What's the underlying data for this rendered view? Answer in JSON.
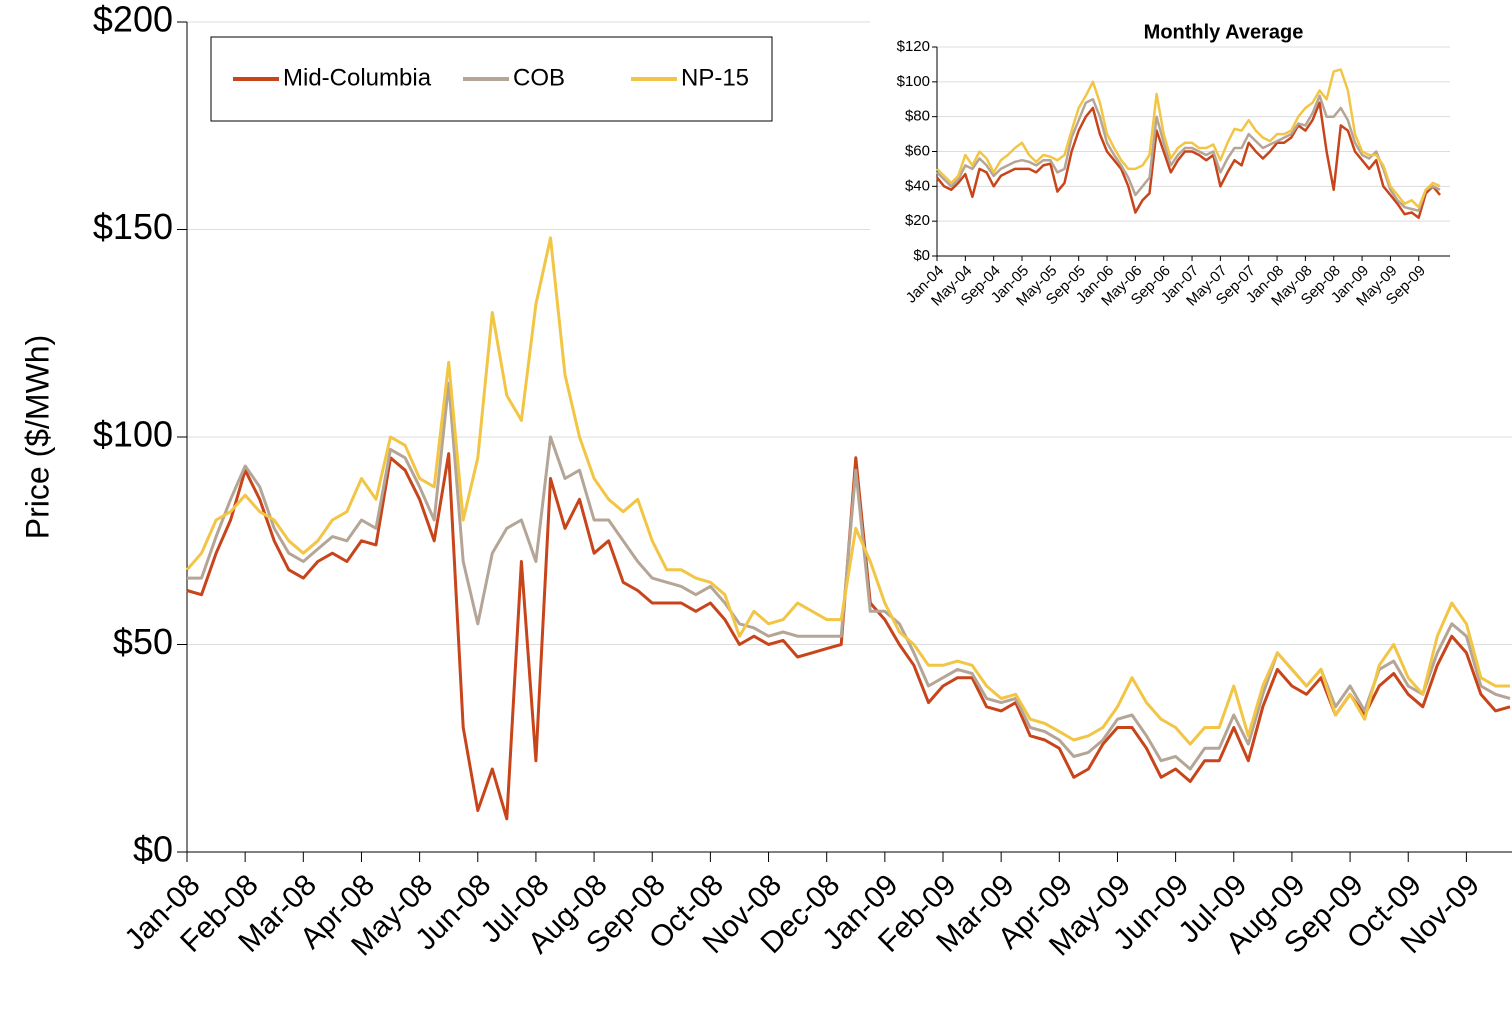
{
  "chart_data": [
    {
      "type": "line",
      "y_label": "Price ($/MWh)",
      "categories": [
        "Jan-08",
        null,
        null,
        null,
        "Feb-08",
        null,
        null,
        null,
        "Mar-08",
        null,
        null,
        null,
        "Apr-08",
        null,
        null,
        null,
        "May-08",
        null,
        null,
        null,
        "Jun-08",
        null,
        null,
        null,
        "Jul-08",
        null,
        null,
        null,
        "Aug-08",
        null,
        null,
        null,
        "Sep-08",
        null,
        null,
        null,
        "Oct-08",
        null,
        null,
        null,
        "Nov-08",
        null,
        null,
        null,
        "Dec-08",
        null,
        null,
        null,
        "Jan-09",
        null,
        null,
        null,
        "Feb-09",
        null,
        null,
        null,
        "Mar-09",
        null,
        null,
        null,
        "Apr-09",
        null,
        null,
        null,
        "May-09",
        null,
        null,
        null,
        "Jun-09",
        null,
        null,
        null,
        "Jul-09",
        null,
        null,
        null,
        "Aug-09",
        null,
        null,
        null,
        "Sep-09",
        null,
        null,
        null,
        "Oct-09",
        null,
        null,
        null,
        "Nov-09",
        null,
        null,
        null
      ],
      "series": [
        {
          "name": "Mid-Columbia",
          "color": "#c8441a",
          "values": [
            63,
            62,
            72,
            80,
            92,
            85,
            75,
            68,
            66,
            70,
            72,
            70,
            75,
            74,
            95,
            92,
            85,
            75,
            96,
            30,
            10,
            20,
            8,
            70,
            22,
            90,
            78,
            85,
            72,
            75,
            65,
            63,
            60,
            60,
            60,
            58,
            60,
            56,
            50,
            52,
            50,
            51,
            47,
            48,
            49,
            50,
            95,
            60,
            56,
            50,
            45,
            36,
            40,
            42,
            42,
            35,
            34,
            36,
            28,
            27,
            25,
            18,
            20,
            26,
            30,
            30,
            25,
            18,
            20,
            17,
            22,
            22,
            30,
            22,
            35,
            44,
            40,
            38,
            42,
            33,
            38,
            33,
            40,
            43,
            38,
            35,
            45,
            52,
            48,
            38,
            34,
            35
          ]
        },
        {
          "name": "COB",
          "color": "#b4a596",
          "values": [
            66,
            66,
            76,
            85,
            93,
            88,
            78,
            72,
            70,
            73,
            76,
            75,
            80,
            78,
            97,
            95,
            88,
            80,
            113,
            70,
            55,
            72,
            78,
            80,
            70,
            100,
            90,
            92,
            80,
            80,
            75,
            70,
            66,
            65,
            64,
            62,
            64,
            60,
            55,
            54,
            52,
            53,
            52,
            52,
            52,
            52,
            92,
            58,
            58,
            55,
            48,
            40,
            42,
            44,
            43,
            37,
            36,
            37,
            30,
            29,
            27,
            23,
            24,
            27,
            32,
            33,
            28,
            22,
            23,
            20,
            25,
            25,
            33,
            26,
            38,
            48,
            44,
            40,
            44,
            35,
            40,
            34,
            44,
            46,
            40,
            38,
            48,
            55,
            52,
            40,
            38,
            37
          ]
        },
        {
          "name": "NP-15",
          "color": "#f2c545",
          "values": [
            68,
            72,
            80,
            82,
            86,
            82,
            80,
            75,
            72,
            75,
            80,
            82,
            90,
            85,
            100,
            98,
            90,
            88,
            118,
            80,
            95,
            130,
            110,
            104,
            132,
            148,
            115,
            100,
            90,
            85,
            82,
            85,
            75,
            68,
            68,
            66,
            65,
            62,
            52,
            58,
            55,
            56,
            60,
            58,
            56,
            56,
            78,
            70,
            60,
            53,
            50,
            45,
            45,
            46,
            45,
            40,
            37,
            38,
            32,
            31,
            29,
            27,
            28,
            30,
            35,
            42,
            36,
            32,
            30,
            26,
            30,
            30,
            40,
            28,
            40,
            48,
            44,
            40,
            44,
            33,
            38,
            32,
            45,
            50,
            42,
            38,
            52,
            60,
            55,
            42,
            40,
            40
          ]
        }
      ],
      "ylim": [
        0,
        200
      ],
      "yticks": [
        {
          "value": 0,
          "label": "$0"
        },
        {
          "value": 50,
          "label": "$50"
        },
        {
          "value": 100,
          "label": "$100"
        },
        {
          "value": 150,
          "label": "$150"
        },
        {
          "value": 200,
          "label": "$200"
        }
      ],
      "grid": true,
      "legend": "top-left"
    },
    {
      "type": "line",
      "title": "Monthly Average",
      "categories": [
        "Jan-04",
        null,
        null,
        null,
        "May-04",
        null,
        null,
        null,
        "Sep-04",
        null,
        null,
        null,
        "Jan-05",
        null,
        null,
        null,
        "May-05",
        null,
        null,
        null,
        "Sep-05",
        null,
        null,
        null,
        "Jan-06",
        null,
        null,
        null,
        "May-06",
        null,
        null,
        null,
        "Sep-06",
        null,
        null,
        null,
        "Jan-07",
        null,
        null,
        null,
        "May-07",
        null,
        null,
        null,
        "Sep-07",
        null,
        null,
        null,
        "Jan-08",
        null,
        null,
        null,
        "May-08",
        null,
        null,
        null,
        "Sep-08",
        null,
        null,
        null,
        "Jan-09",
        null,
        null,
        null,
        "May-09",
        null,
        null,
        null,
        "Sep-09",
        null,
        null,
        null
      ],
      "series": [
        {
          "color": "#c8441a",
          "values": [
            45,
            40,
            38,
            42,
            47,
            34,
            50,
            48,
            40,
            46,
            48,
            50,
            50,
            50,
            48,
            52,
            53,
            37,
            42,
            60,
            72,
            80,
            85,
            70,
            60,
            55,
            50,
            40,
            25,
            32,
            36,
            72,
            60,
            48,
            55,
            60,
            60,
            58,
            55,
            58,
            40,
            48,
            55,
            52,
            65,
            60,
            56,
            60,
            65,
            65,
            68,
            75,
            72,
            78,
            88,
            60,
            38,
            75,
            72,
            60,
            55,
            50,
            55,
            40,
            35,
            30,
            24,
            25,
            22,
            36,
            40,
            35
          ]
        },
        {
          "color": "#b4a596",
          "values": [
            48,
            44,
            40,
            44,
            52,
            50,
            56,
            52,
            46,
            50,
            52,
            54,
            55,
            54,
            52,
            55,
            55,
            48,
            50,
            68,
            78,
            88,
            90,
            80,
            65,
            58,
            52,
            45,
            35,
            40,
            45,
            80,
            65,
            52,
            58,
            62,
            62,
            60,
            58,
            60,
            48,
            56,
            62,
            62,
            70,
            66,
            62,
            64,
            66,
            68,
            70,
            76,
            75,
            82,
            92,
            80,
            80,
            85,
            78,
            65,
            58,
            56,
            60,
            50,
            38,
            32,
            28,
            27,
            26,
            38,
            40,
            38
          ]
        },
        {
          "color": "#f2c545",
          "values": [
            50,
            46,
            42,
            46,
            58,
            52,
            60,
            56,
            48,
            55,
            58,
            62,
            65,
            58,
            54,
            58,
            57,
            55,
            58,
            72,
            85,
            92,
            100,
            88,
            70,
            62,
            55,
            50,
            50,
            52,
            58,
            93,
            70,
            56,
            62,
            65,
            65,
            62,
            62,
            64,
            55,
            65,
            73,
            72,
            78,
            72,
            68,
            66,
            70,
            70,
            72,
            80,
            85,
            88,
            95,
            90,
            106,
            107,
            95,
            70,
            60,
            58,
            58,
            52,
            40,
            35,
            30,
            32,
            28,
            38,
            42,
            40
          ]
        }
      ],
      "ylim": [
        0,
        120
      ],
      "yticks": [
        {
          "value": 0,
          "label": "$0"
        },
        {
          "value": 20,
          "label": "$20"
        },
        {
          "value": 40,
          "label": "$40"
        },
        {
          "value": 60,
          "label": "$60"
        },
        {
          "value": 80,
          "label": "$80"
        },
        {
          "value": 100,
          "label": "$100"
        },
        {
          "value": 120,
          "label": "$120"
        }
      ],
      "grid": true
    }
  ]
}
